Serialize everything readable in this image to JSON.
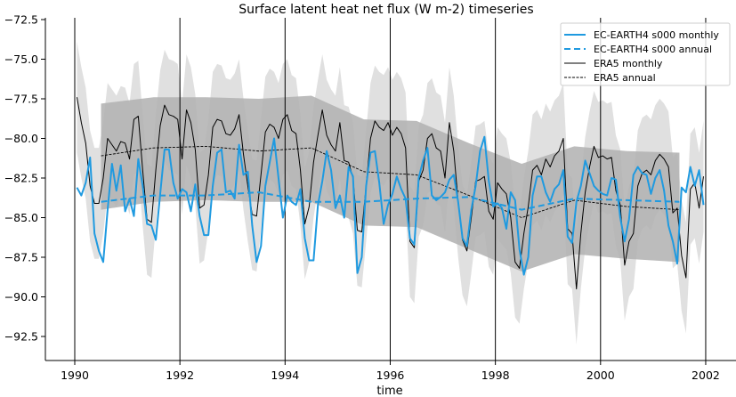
{
  "chart_data": {
    "type": "line",
    "title": "Surface latent heat net flux (W m-2) timeseries",
    "xlabel": "time",
    "ylabel": "",
    "xlim": [
      1989.4,
      2002.6
    ],
    "ylim": [
      -94,
      -72.3
    ],
    "xticks": [
      1990,
      1992,
      1994,
      1996,
      1998,
      2000,
      2002
    ],
    "yticks": [
      -72.5,
      -75.0,
      -77.5,
      -80.0,
      -82.5,
      -85.0,
      -87.5,
      -90.0,
      -92.5
    ],
    "vertical_lines_at": [
      1990,
      1992,
      1994,
      1996,
      1998,
      2000,
      2002
    ],
    "legend_position": "top-right",
    "grid": false,
    "colors": {
      "ec_earth": "#1f9ae0",
      "era5": "#000000",
      "band_dark": "#b0b0b0",
      "band_light": "#e0e0e0"
    },
    "monthly_start_year": 1990,
    "series": [
      {
        "name": "EC-EARTH4 s000 monthly",
        "style": "solid",
        "color": "#1f9ae0",
        "values": [
          -83.1,
          -83.6,
          -82.8,
          -81.2,
          -86.0,
          -87.1,
          -87.8,
          -84.5,
          -81.6,
          -83.3,
          -81.7,
          -84.6,
          -83.8,
          -84.9,
          -81.3,
          -83.0,
          -85.4,
          -85.5,
          -86.4,
          -83.5,
          -80.7,
          -80.7,
          -82.8,
          -83.8,
          -83.2,
          -83.4,
          -84.6,
          -82.9,
          -84.9,
          -86.1,
          -86.1,
          -83.0,
          -80.9,
          -80.7,
          -83.4,
          -83.3,
          -83.8,
          -80.4,
          -82.3,
          -82.1,
          -85.5,
          -87.8,
          -86.8,
          -83.0,
          -81.5,
          -80.0,
          -82.5,
          -85.0,
          -83.6,
          -84.0,
          -84.2,
          -83.2,
          -86.3,
          -87.7,
          -87.7,
          -84.2,
          -82.7,
          -80.8,
          -82.0,
          -84.4,
          -83.6,
          -85.0,
          -81.8,
          -82.4,
          -88.5,
          -87.5,
          -83.0,
          -80.9,
          -80.8,
          -82.8,
          -85.4,
          -84.2,
          -83.5,
          -82.4,
          -83.2,
          -83.8,
          -86.3,
          -86.7,
          -82.5,
          -81.4,
          -80.6,
          -83.6,
          -83.9,
          -83.7,
          -83.4,
          -82.6,
          -82.3,
          -84.0,
          -86.3,
          -86.8,
          -84.5,
          -83.0,
          -80.8,
          -79.9,
          -82.7,
          -84.3,
          -84.1,
          -84.4,
          -85.7,
          -83.4,
          -83.9,
          -87.0,
          -88.6,
          -87.5,
          -83.6,
          -82.4,
          -82.4,
          -83.4,
          -84.0,
          -83.2,
          -82.9,
          -82.0,
          -86.2,
          -86.6,
          -84.0,
          -83.0,
          -81.4,
          -82.2,
          -83.0,
          -83.3,
          -83.5,
          -83.6,
          -82.5,
          -82.6,
          -85.0,
          -86.5,
          -85.1,
          -82.3,
          -81.8,
          -82.2,
          -82.3,
          -83.5,
          -82.5,
          -82.0,
          -83.3,
          -85.5,
          -86.5,
          -87.9,
          -83.1,
          -83.4,
          -81.8,
          -83.0,
          -82.0,
          -84.2
        ]
      },
      {
        "name": "EC-EARTH4 s000 annual",
        "style": "dashed",
        "color": "#1f9ae0",
        "x": [
          1990.5,
          1991.5,
          1992.5,
          1993.5,
          1994.5,
          1995.5,
          1996.5,
          1997.5,
          1998.5,
          1999.5,
          2000.5,
          2001.5
        ],
        "values": [
          -84.0,
          -83.6,
          -83.6,
          -83.4,
          -84.0,
          -84.0,
          -83.8,
          -83.7,
          -84.5,
          -83.8,
          -83.9,
          -84.0
        ]
      },
      {
        "name": "ERA5 monthly",
        "style": "solid",
        "color": "#000000",
        "values": [
          -77.4,
          -79.0,
          -80.3,
          -83.0,
          -84.1,
          -84.1,
          -82.5,
          -80.0,
          -80.4,
          -80.8,
          -80.2,
          -80.3,
          -81.3,
          -78.8,
          -78.6,
          -82.0,
          -85.1,
          -85.3,
          -82.0,
          -79.2,
          -77.9,
          -78.5,
          -78.6,
          -78.8,
          -81.3,
          -78.2,
          -79.0,
          -80.7,
          -84.4,
          -84.2,
          -82.3,
          -79.3,
          -78.8,
          -78.9,
          -79.7,
          -79.8,
          -79.4,
          -78.5,
          -81.0,
          -83.0,
          -84.8,
          -84.9,
          -82.3,
          -79.6,
          -79.1,
          -79.3,
          -80.0,
          -78.8,
          -78.5,
          -79.5,
          -79.7,
          -82.0,
          -85.4,
          -84.3,
          -81.5,
          -79.8,
          -78.2,
          -79.8,
          -80.4,
          -80.8,
          -79.0,
          -81.4,
          -81.5,
          -82.5,
          -85.8,
          -85.9,
          -83.0,
          -80.0,
          -78.9,
          -79.3,
          -79.5,
          -79.0,
          -79.8,
          -79.3,
          -79.7,
          -80.6,
          -86.5,
          -86.9,
          -82.7,
          -82.0,
          -80.0,
          -79.7,
          -80.6,
          -80.8,
          -82.5,
          -79.0,
          -80.8,
          -84.0,
          -86.4,
          -87.1,
          -85.0,
          -82.7,
          -82.6,
          -82.4,
          -84.6,
          -85.1,
          -82.8,
          -83.2,
          -83.5,
          -85.0,
          -87.8,
          -88.2,
          -86.0,
          -84.3,
          -82.0,
          -81.7,
          -82.3,
          -81.3,
          -81.8,
          -81.1,
          -80.8,
          -80.0,
          -85.7,
          -86.0,
          -89.5,
          -86.0,
          -83.4,
          -81.8,
          -80.5,
          -81.2,
          -81.1,
          -81.3,
          -81.2,
          -83.3,
          -84.2,
          -88.0,
          -86.5,
          -86.0,
          -83.0,
          -82.2,
          -82.0,
          -82.3,
          -81.4,
          -81.0,
          -81.3,
          -81.8,
          -84.7,
          -84.4,
          -87.4,
          -88.8,
          -83.2,
          -82.8,
          -84.4,
          -82.4
        ]
      },
      {
        "name": "ERA5 annual",
        "style": "dotted",
        "color": "#000000",
        "x": [
          1990.5,
          1991.5,
          1992.5,
          1993.5,
          1994.5,
          1995.5,
          1996.5,
          1997.5,
          1998.5,
          1999.5,
          2000.5,
          2001.5
        ],
        "values": [
          -81.1,
          -80.6,
          -80.5,
          -80.8,
          -80.6,
          -82.1,
          -82.3,
          -83.6,
          -85.0,
          -83.9,
          -84.3,
          -84.5
        ]
      }
    ],
    "bands": {
      "annual_range": {
        "x": [
          1990.5,
          1991.5,
          1992.5,
          1993.5,
          1994.5,
          1995.5,
          1996.5,
          1997.5,
          1998.5,
          1999.5,
          2000.5,
          2001.5
        ],
        "upper": [
          -77.8,
          -77.4,
          -77.4,
          -77.5,
          -77.3,
          -78.8,
          -78.9,
          -80.3,
          -81.6,
          -80.5,
          -80.8,
          -80.9
        ],
        "lower": [
          -84.5,
          -84.0,
          -83.9,
          -84.0,
          -84.0,
          -85.5,
          -85.6,
          -87.0,
          -88.4,
          -87.3,
          -87.6,
          -87.8
        ]
      },
      "monthly_halfwidth": 3.5
    }
  }
}
